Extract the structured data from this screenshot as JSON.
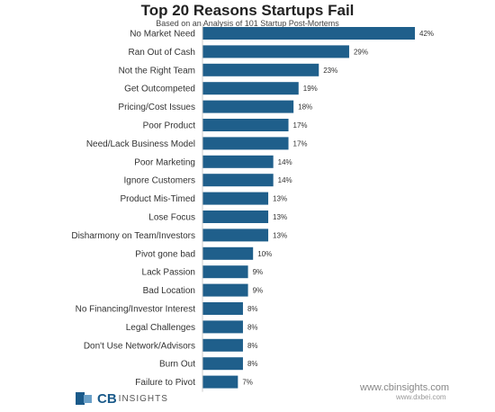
{
  "chart_data": {
    "type": "bar",
    "orientation": "horizontal",
    "title": "Top 20 Reasons Startups Fail",
    "subtitle": "Based on an Analysis of 101 Startup Post-Mortems",
    "categories": [
      "No Market Need",
      "Ran Out of Cash",
      "Not the Right Team",
      "Get Outcompeted",
      "Pricing/Cost Issues",
      "Poor Product",
      "Need/Lack Business Model",
      "Poor Marketing",
      "Ignore Customers",
      "Product Mis-Timed",
      "Lose Focus",
      "Disharmony on Team/Investors",
      "Pivot gone bad",
      "Lack Passion",
      "Bad Location",
      "No Financing/Investor Interest",
      "Legal Challenges",
      "Don't Use Network/Advisors",
      "Burn Out",
      "Failure to Pivot"
    ],
    "values": [
      42,
      29,
      23,
      19,
      18,
      17,
      17,
      14,
      14,
      13,
      13,
      13,
      10,
      9,
      9,
      8,
      8,
      8,
      8,
      7
    ],
    "value_labels": [
      "42%",
      "29%",
      "23%",
      "19%",
      "18%",
      "17%",
      "17%",
      "14%",
      "14%",
      "13%",
      "13%",
      "13%",
      "10%",
      "9%",
      "9%",
      "8%",
      "8%",
      "8%",
      "8%",
      "7%"
    ],
    "unit": "%",
    "xlim": [
      0,
      42
    ],
    "bar_color": "#1f5f8b",
    "grid": false,
    "legend": "none"
  },
  "footer": {
    "logo_cb": "CB",
    "logo_insights": "INSIGHTS",
    "watermark_text": "www.cbinsights.com",
    "watermark_sub": "www.dxbei.com"
  }
}
